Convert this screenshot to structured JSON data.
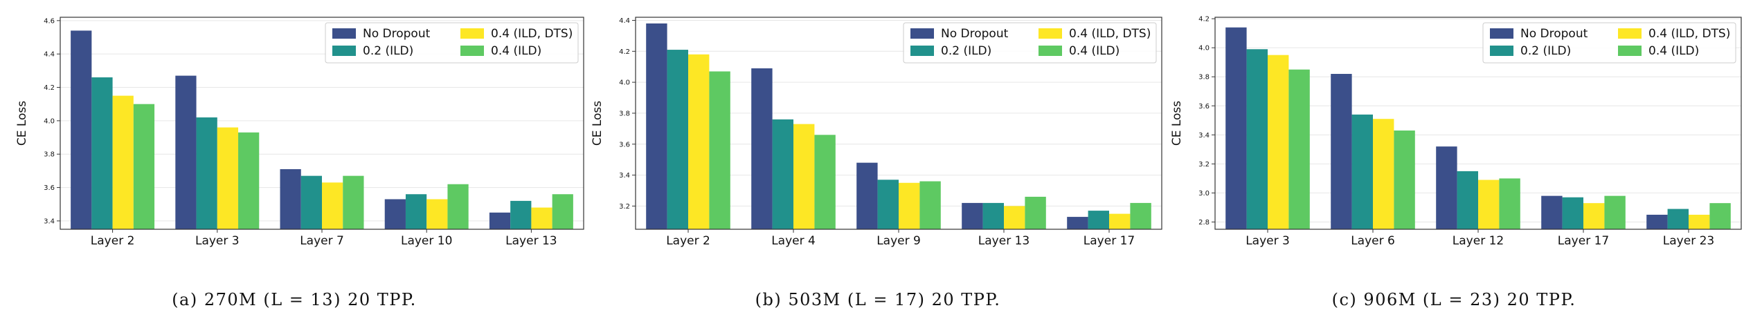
{
  "colors": {
    "no_dropout": "#3b4f8a",
    "ild_02": "#21918c",
    "ild_dts_04": "#fde725",
    "ild_04": "#5ec962"
  },
  "chart_data": [
    {
      "type": "bar",
      "ylabel": "CE Loss",
      "categories": [
        "Layer 2",
        "Layer 3",
        "Layer 7",
        "Layer 10",
        "Layer 13"
      ],
      "ylim": [
        3.35,
        4.62
      ],
      "yticks": [
        "3.4",
        "3.6",
        "3.8",
        "4.0",
        "4.2",
        "4.4",
        "4.6"
      ],
      "series": [
        {
          "name": "No Dropout",
          "values": [
            4.54,
            4.27,
            3.71,
            3.53,
            3.45
          ]
        },
        {
          "name": "0.2 (ILD)",
          "values": [
            4.26,
            4.02,
            3.67,
            3.56,
            3.52
          ]
        },
        {
          "name": "0.4 (ILD, DTS)",
          "values": [
            4.15,
            3.96,
            3.63,
            3.53,
            3.48
          ]
        },
        {
          "name": "0.4 (ILD)",
          "values": [
            4.1,
            3.93,
            3.67,
            3.62,
            3.56
          ]
        }
      ],
      "legend": "top-right",
      "caption": "(a) 270M (L = 13) 20 TPP."
    },
    {
      "type": "bar",
      "ylabel": "CE Loss",
      "categories": [
        "Layer 2",
        "Layer 4",
        "Layer 9",
        "Layer 13",
        "Layer 17"
      ],
      "ylim": [
        3.05,
        4.42
      ],
      "yticks": [
        "3.2",
        "3.4",
        "3.6",
        "3.8",
        "4.0",
        "4.2",
        "4.4"
      ],
      "series": [
        {
          "name": "No Dropout",
          "values": [
            4.38,
            4.09,
            3.48,
            3.22,
            3.13
          ]
        },
        {
          "name": "0.2 (ILD)",
          "values": [
            4.21,
            3.76,
            3.37,
            3.22,
            3.17
          ]
        },
        {
          "name": "0.4 (ILD, DTS)",
          "values": [
            4.18,
            3.73,
            3.35,
            3.2,
            3.15
          ]
        },
        {
          "name": "0.4 (ILD)",
          "values": [
            4.07,
            3.66,
            3.36,
            3.26,
            3.22
          ]
        }
      ],
      "legend": "top-right",
      "caption": "(b) 503M (L = 17) 20 TPP."
    },
    {
      "type": "bar",
      "ylabel": "CE Loss",
      "categories": [
        "Layer 3",
        "Layer 6",
        "Layer 12",
        "Layer 17",
        "Layer 23"
      ],
      "ylim": [
        2.75,
        4.21
      ],
      "yticks": [
        "2.8",
        "3.0",
        "3.2",
        "3.4",
        "3.6",
        "3.8",
        "4.0",
        "4.2"
      ],
      "series": [
        {
          "name": "No Dropout",
          "values": [
            4.14,
            3.82,
            3.32,
            2.98,
            2.85
          ]
        },
        {
          "name": "0.2 (ILD)",
          "values": [
            3.99,
            3.54,
            3.15,
            2.97,
            2.89
          ]
        },
        {
          "name": "0.4 (ILD, DTS)",
          "values": [
            3.95,
            3.51,
            3.09,
            2.93,
            2.85
          ]
        },
        {
          "name": "0.4 (ILD)",
          "values": [
            3.85,
            3.43,
            3.1,
            2.98,
            2.93
          ]
        }
      ],
      "legend": "top-right",
      "caption": "(c) 906M (L = 23) 20 TPP."
    }
  ]
}
